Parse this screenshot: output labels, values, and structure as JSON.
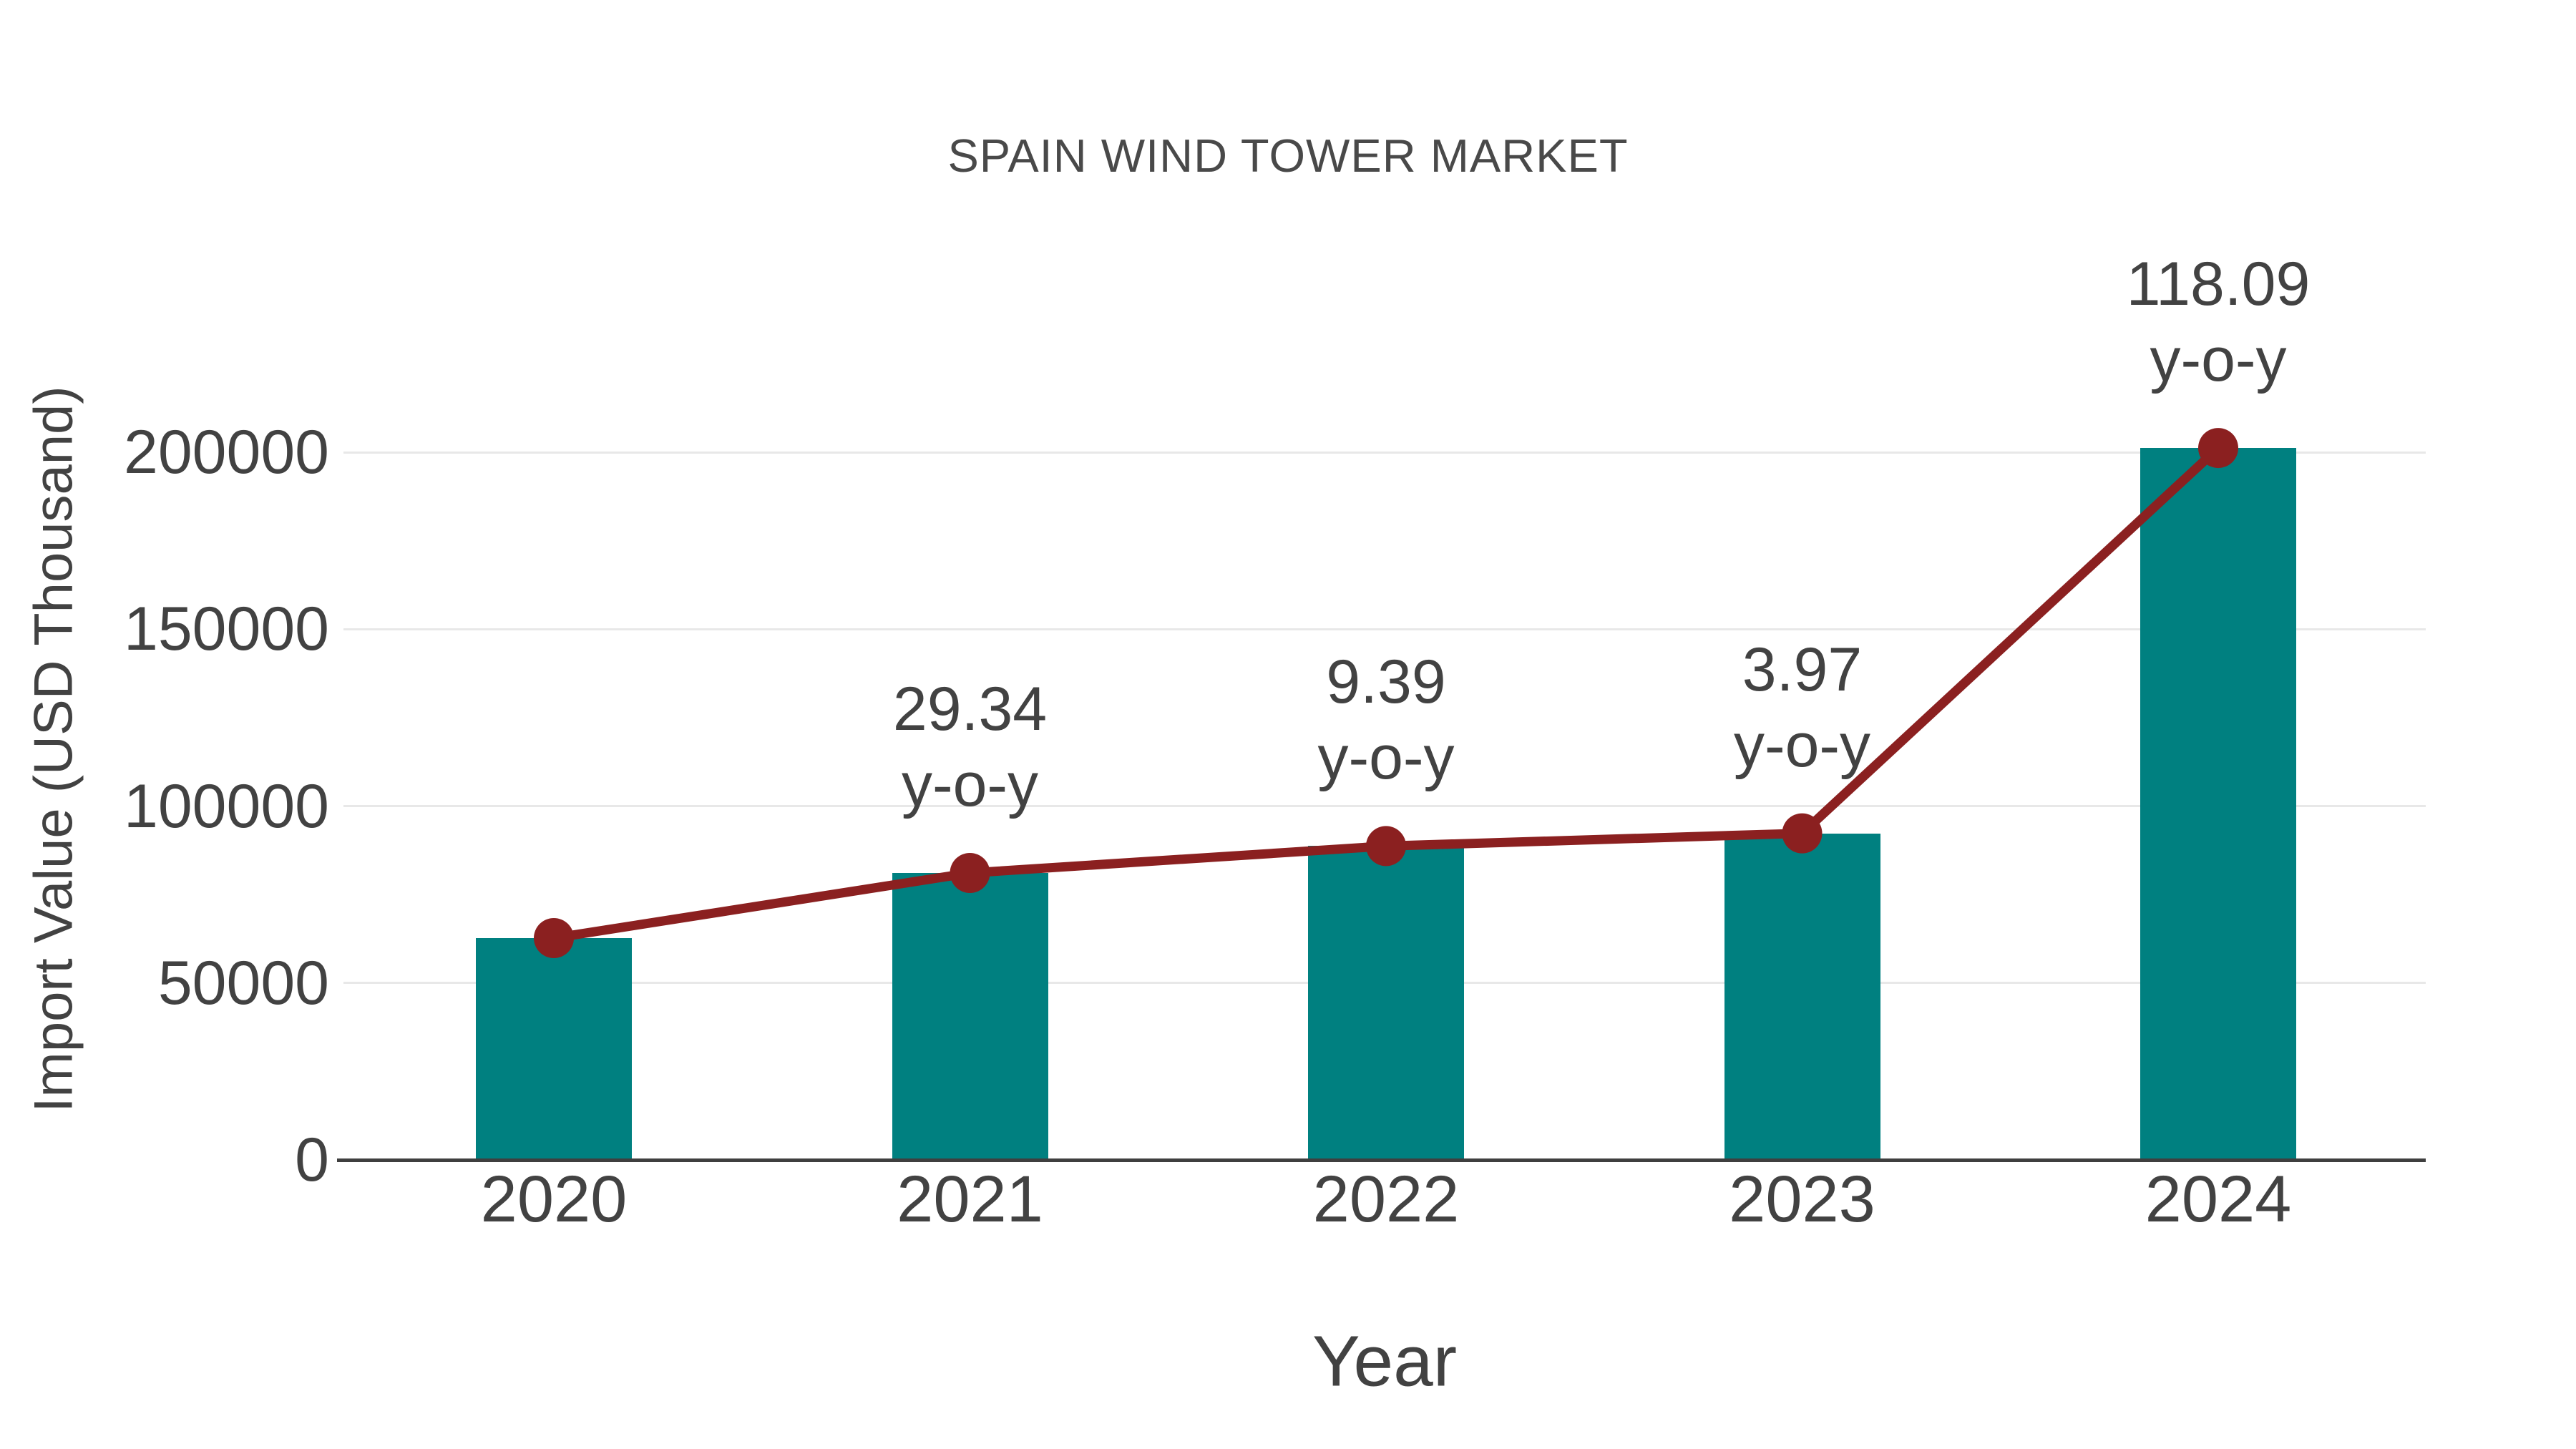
{
  "title": "SPAIN WIND TOWER MARKET",
  "colors": {
    "bar": "#008080",
    "line": "#8B2020",
    "text": "#424242",
    "gridline": "#e8e8e8",
    "axis_line": "#3f3f3f",
    "background": "#ffffff"
  },
  "chart_data": {
    "type": "bar",
    "overlay": "line",
    "title": "SPAIN WIND TOWER MARKET",
    "xlabel": "Year",
    "ylabel": "Import Value (USD Thousand)",
    "categories": [
      "2020",
      "2021",
      "2022",
      "2023",
      "2024"
    ],
    "series": [
      {
        "name": "Import Value bars",
        "type": "bar",
        "color": "#008080",
        "values": [
          62700,
          81100,
          88700,
          92300,
          201200
        ]
      },
      {
        "name": "Import Value trend line",
        "type": "line",
        "color": "#8B2020",
        "values": [
          62700,
          81100,
          88700,
          92300,
          201200
        ]
      }
    ],
    "annotations": [
      {
        "category": "2021",
        "value": "29.34",
        "suffix": "y-o-y"
      },
      {
        "category": "2022",
        "value": "9.39",
        "suffix": "y-o-y"
      },
      {
        "category": "2023",
        "value": "3.97",
        "suffix": "y-o-y"
      },
      {
        "category": "2024",
        "value": "118.09",
        "suffix": "y-o-y"
      }
    ],
    "ylim": [
      0,
      215000
    ],
    "yticks": [
      0,
      50000,
      100000,
      150000,
      200000
    ],
    "grid": true,
    "legend": "none"
  }
}
